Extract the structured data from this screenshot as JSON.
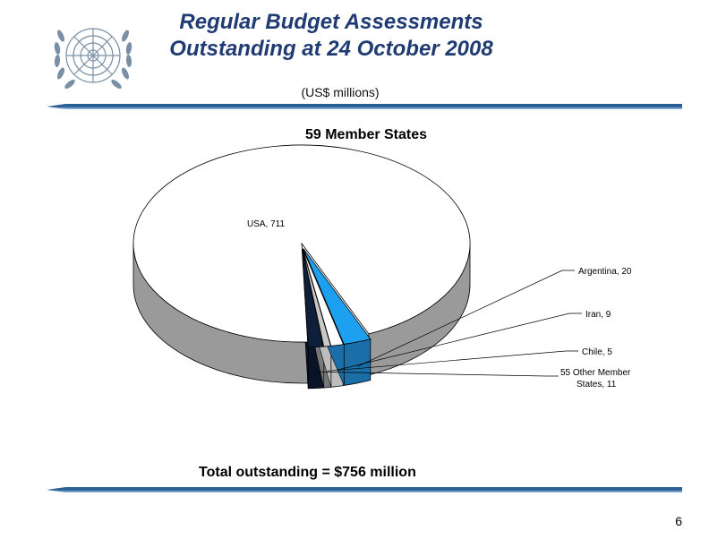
{
  "slide": {
    "title_line1": "Regular Budget Assessments",
    "title_line2": "Outstanding at 24 October 2008",
    "subtitle": "(US$ millions)",
    "page_number": "6",
    "logo": "un-emblem-icon"
  },
  "chart_data": {
    "type": "pie",
    "title": "59 Member States",
    "footnote": "Total outstanding = $756 million",
    "categories": [
      "USA",
      "Argentina",
      "Iran",
      "Chile",
      "55 Other Member States"
    ],
    "values": [
      711,
      20,
      9,
      5,
      11
    ],
    "labels": [
      "USA, 711",
      "Argentina, 20",
      "Iran, 9",
      "Chile, 5",
      "55 Other Member",
      "States, 11"
    ],
    "colors": [
      "#ffffff",
      "#1ea0f0",
      "#ffffff",
      "#c8c8c8",
      "#0f1f3a"
    ],
    "style": "3d-exploded-pie"
  }
}
